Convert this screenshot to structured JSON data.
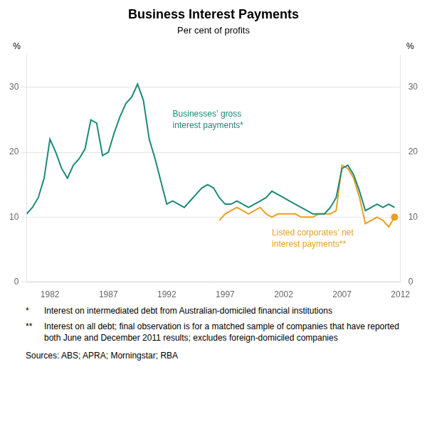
{
  "chart_data": {
    "type": "line",
    "title": "Business Interest Payments",
    "subtitle": "Per cent of profits",
    "ylabel": "%",
    "y2label": "%",
    "xlim": [
      1980,
      2012
    ],
    "xticks": [
      1982,
      1987,
      1992,
      1997,
      2002,
      2007,
      2012
    ],
    "ylim": [
      0,
      35
    ],
    "yticks": [
      0,
      10,
      20,
      30
    ],
    "y2lim": [
      0,
      35
    ],
    "y2ticks": [
      0,
      10,
      20,
      30
    ],
    "grid": "y",
    "series": [
      {
        "color": "#1a8a7a",
        "x": [
          1980.0,
          1980.5,
          1981.0,
          1981.5,
          1982.0,
          1982.5,
          1983.0,
          1983.5,
          1984.0,
          1984.5,
          1985.0,
          1985.5,
          1986.0,
          1986.5,
          1987.0,
          1987.5,
          1988.0,
          1988.5,
          1989.0,
          1989.5,
          1990.0,
          1990.5,
          1991.0,
          1991.5,
          1992.0,
          1992.5,
          1993.0,
          1993.5,
          1994.0,
          1994.5,
          1995.0,
          1995.5,
          1996.0,
          1996.5,
          1997.0,
          1997.5,
          1998.0,
          1998.5,
          1999.0,
          1999.5,
          2000.0,
          2000.5,
          2001.0,
          2001.5,
          2002.0,
          2002.5,
          2003.0,
          2003.5,
          2004.0,
          2004.5,
          2005.0,
          2005.5,
          2006.0,
          2006.5,
          2007.0,
          2007.5,
          2008.0,
          2008.5,
          2009.0,
          2009.5,
          2010.0,
          2010.5,
          2011.0,
          2011.5
        ],
        "values": [
          10.5,
          11.5,
          13.0,
          16.0,
          22.0,
          20.0,
          17.5,
          16.0,
          18.0,
          19.0,
          20.5,
          25.0,
          24.5,
          19.5,
          20.0,
          23.0,
          25.5,
          27.5,
          28.5,
          30.5,
          28.0,
          22.0,
          19.0,
          15.5,
          12.0,
          12.5,
          12.0,
          11.5,
          12.5,
          13.5,
          14.5,
          15.0,
          14.5,
          13.0,
          12.0,
          12.0,
          12.5,
          12.0,
          11.5,
          12.0,
          12.5,
          13.0,
          14.0,
          13.5,
          13.0,
          12.5,
          12.0,
          11.5,
          11.0,
          10.5,
          10.5,
          10.5,
          11.5,
          13.0,
          17.5,
          18.0,
          16.5,
          14.0,
          11.0,
          11.5,
          12.0,
          11.5,
          12.0,
          11.5
        ]
      },
      {
        "color": "#e8a020",
        "x": [
          1996.5,
          1997.0,
          1997.5,
          1998.0,
          1998.5,
          1999.0,
          1999.5,
          2000.0,
          2000.5,
          2001.0,
          2001.5,
          2002.0,
          2002.5,
          2003.0,
          2003.5,
          2004.0,
          2004.5,
          2005.0,
          2005.5,
          2006.0,
          2006.5,
          2007.0,
          2007.5,
          2008.0,
          2008.5,
          2009.0,
          2009.5,
          2010.0,
          2010.5,
          2011.0,
          2011.5
        ],
        "values": [
          9.5,
          10.5,
          11.0,
          11.5,
          11.0,
          10.5,
          11.0,
          11.5,
          10.5,
          10.0,
          10.5,
          10.5,
          10.5,
          10.5,
          10.0,
          10.0,
          10.0,
          10.5,
          10.5,
          10.5,
          11.0,
          18.0,
          17.5,
          16.0,
          13.0,
          9.0,
          9.5,
          10.0,
          9.5,
          8.5,
          10.0
        ]
      },
      {
        "type": "scatter",
        "marker": "circle",
        "color": "#e8a020",
        "x": [
          2011.5
        ],
        "values": [
          10.0
        ]
      }
    ],
    "annotations": [
      {
        "text": [
          "Businesses’ gross",
          "interest payments*"
        ],
        "x": 1992.5,
        "y": 26.5,
        "color": "#1a8a7a"
      },
      {
        "text": [
          "Listed corporates’ net",
          "interest payments**"
        ],
        "x": 2001.0,
        "y": 8.2,
        "color": "#e8a020"
      }
    ],
    "footnotes": [
      {
        "marker": "*",
        "text": "Interest on intermediated debt from Australian-domiciled financial institutions"
      },
      {
        "marker": "**",
        "text": "Interest on all debt; final observation is for a matched sample of companies that have reported both June and December 2011 results; excludes foreign-domiciled companies"
      }
    ],
    "sources": "Sources: ABS; APRA; Morningstar; RBA"
  }
}
